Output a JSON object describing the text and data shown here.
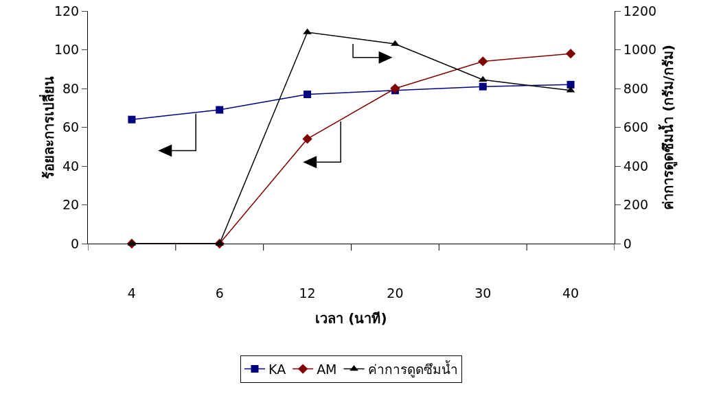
{
  "chart_data": {
    "type": "line",
    "xlabel": "เวลา (นาที)",
    "ylabel": "ร้อยละการเปลี่ยน",
    "y2label": "ค่าการดูดซึมน้ำ (กรัม/กรัม)",
    "categories": [
      "4",
      "6",
      "12",
      "20",
      "30",
      "40"
    ],
    "series": [
      {
        "name": "KA",
        "color": "#000080",
        "marker": "square",
        "values": [
          64,
          69,
          77,
          79,
          81,
          82
        ]
      },
      {
        "name": "AM",
        "color": "#800000",
        "marker": "diamond",
        "values": [
          0,
          0,
          54,
          80,
          94,
          98
        ]
      },
      {
        "name": "ค่าการดูดซึมน้ำ",
        "color": "#000000",
        "marker": "triangle",
        "axis": "y2",
        "values": [
          0,
          0,
          1090,
          1030,
          845,
          790
        ]
      }
    ],
    "ylim": [
      0,
      120
    ],
    "yticks": [
      0,
      20,
      40,
      60,
      80,
      100,
      120
    ],
    "y2lim": [
      0,
      1200
    ],
    "y2ticks": [
      0,
      200,
      400,
      600,
      800,
      1000,
      1200
    ],
    "grid": false,
    "legend": "bottom",
    "line_style": "solid"
  }
}
